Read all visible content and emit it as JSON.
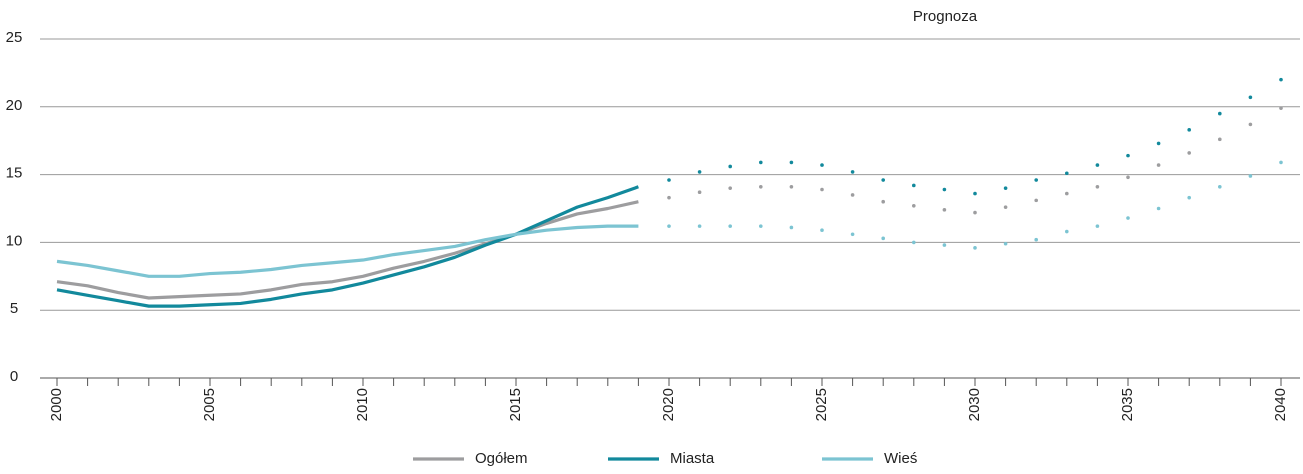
{
  "chart_data": {
    "type": "line",
    "annotation": "Prognoza",
    "x": [
      2000,
      2001,
      2002,
      2003,
      2004,
      2005,
      2006,
      2007,
      2008,
      2009,
      2010,
      2011,
      2012,
      2013,
      2014,
      2015,
      2016,
      2017,
      2018,
      2019,
      2020,
      2021,
      2022,
      2023,
      2024,
      2025,
      2026,
      2027,
      2028,
      2029,
      2030,
      2031,
      2032,
      2033,
      2034,
      2035,
      2036,
      2037,
      2038,
      2039,
      2040
    ],
    "series": [
      {
        "name": "Ogółem",
        "color": "#9d9d9f",
        "values": [
          7.1,
          6.8,
          6.3,
          5.9,
          6.0,
          6.1,
          6.2,
          6.5,
          6.9,
          7.1,
          7.5,
          8.1,
          8.6,
          9.2,
          9.9,
          10.6,
          11.4,
          12.1,
          12.5,
          13.0,
          null,
          null,
          null,
          null,
          null,
          null,
          null,
          null,
          null,
          null,
          null,
          null,
          null,
          null,
          null,
          null,
          null,
          null,
          null,
          null,
          null
        ],
        "forecast": [
          null,
          null,
          null,
          null,
          null,
          null,
          null,
          null,
          null,
          null,
          null,
          null,
          null,
          null,
          null,
          null,
          null,
          null,
          null,
          null,
          13.3,
          13.7,
          14.0,
          14.1,
          14.1,
          13.9,
          13.5,
          13.0,
          12.7,
          12.4,
          12.2,
          12.6,
          13.1,
          13.6,
          14.1,
          14.8,
          15.7,
          16.6,
          17.6,
          18.7,
          19.9
        ]
      },
      {
        "name": "Miasta",
        "color": "#12899c",
        "values": [
          6.5,
          6.1,
          5.7,
          5.3,
          5.3,
          5.4,
          5.5,
          5.8,
          6.2,
          6.5,
          7.0,
          7.6,
          8.2,
          8.9,
          9.8,
          10.6,
          11.6,
          12.6,
          13.3,
          14.1,
          null,
          null,
          null,
          null,
          null,
          null,
          null,
          null,
          null,
          null,
          null,
          null,
          null,
          null,
          null,
          null,
          null,
          null,
          null,
          null,
          null
        ],
        "forecast": [
          null,
          null,
          null,
          null,
          null,
          null,
          null,
          null,
          null,
          null,
          null,
          null,
          null,
          null,
          null,
          null,
          null,
          null,
          null,
          null,
          14.6,
          15.2,
          15.6,
          15.9,
          15.9,
          15.7,
          15.2,
          14.6,
          14.2,
          13.9,
          13.6,
          14.0,
          14.6,
          15.1,
          15.7,
          16.4,
          17.3,
          18.3,
          19.5,
          20.7,
          22.0
        ]
      },
      {
        "name": "Wieś",
        "color": "#7cc4d2",
        "values": [
          8.6,
          8.3,
          7.9,
          7.5,
          7.5,
          7.7,
          7.8,
          8.0,
          8.3,
          8.5,
          8.7,
          9.1,
          9.4,
          9.7,
          10.2,
          10.6,
          10.9,
          11.1,
          11.2,
          11.2,
          null,
          null,
          null,
          null,
          null,
          null,
          null,
          null,
          null,
          null,
          null,
          null,
          null,
          null,
          null,
          null,
          null,
          null,
          null,
          null,
          null
        ],
        "forecast": [
          null,
          null,
          null,
          null,
          null,
          null,
          null,
          null,
          null,
          null,
          null,
          null,
          null,
          null,
          null,
          null,
          null,
          null,
          null,
          null,
          11.2,
          11.2,
          11.2,
          11.2,
          11.1,
          10.9,
          10.6,
          10.3,
          10.0,
          9.8,
          9.6,
          9.9,
          10.2,
          10.8,
          11.2,
          11.8,
          12.5,
          13.3,
          14.1,
          14.9,
          15.9
        ]
      }
    ],
    "xlim": [
      2000,
      2040
    ],
    "xticks": [
      2000,
      2005,
      2010,
      2015,
      2020,
      2025,
      2030,
      2035,
      2040
    ],
    "ylim": [
      0,
      25
    ],
    "yticks": [
      0,
      5,
      10,
      15,
      20,
      25
    ],
    "grid": true
  }
}
